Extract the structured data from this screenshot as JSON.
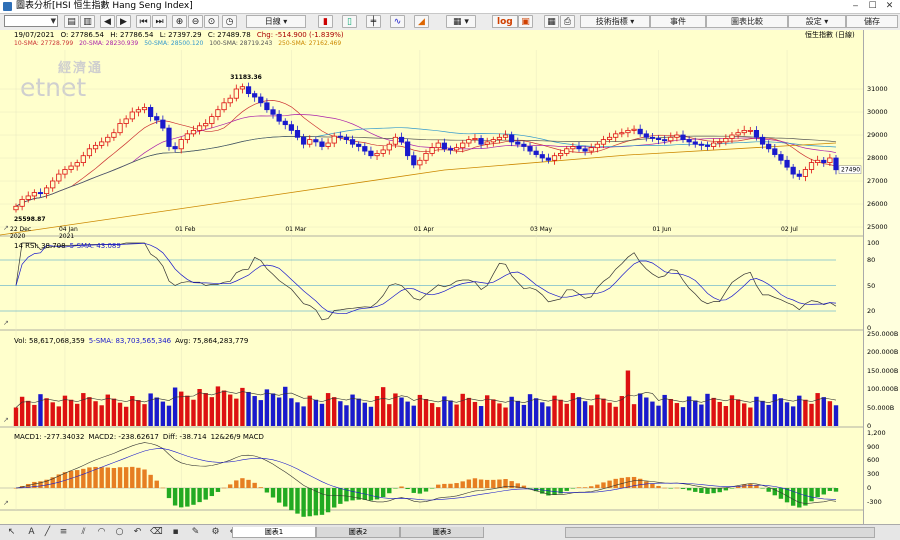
{
  "window": {
    "title": "圖表分析[HSI 恒生指數 Hang Seng Index]",
    "minimize": "‒",
    "maximize": "☐",
    "close": "✕"
  },
  "toolbar": {
    "combo_value": "",
    "menu_period": "日線",
    "menu_log": "log",
    "menu_tech": "技術指標 ▾",
    "menu_events": "事件",
    "menu_compare": "圖表比較",
    "menu_settings": "設定 ▾",
    "menu_save": "儲存"
  },
  "header": {
    "date": "19/07/2021",
    "open": "O: 27786.54",
    "high": "H: 27786.54",
    "low": "L: 27397.29",
    "close": "C: 27489.78",
    "change": "Chg: -514.900 (-1.839%)",
    "symbol": "恒生指數 (日線)",
    "sma_line": [
      "10-SMA: 27728.799",
      "20-SMA: 28230.939",
      "50-SMA: 28500.120",
      "100-SMA: 28719.243",
      "250-SMA: 27162.469"
    ]
  },
  "watermark": {
    "chinese": "經濟通",
    "latin": "etnet"
  },
  "price_annotations": {
    "high": "31183.36",
    "low": "25598.87",
    "last": "27490"
  },
  "x_axis": [
    {
      "label": "22 Dec",
      "sub": "2020",
      "i": 0
    },
    {
      "label": "04 Jan",
      "sub": "2021",
      "i": 8
    },
    {
      "label": "01 Feb",
      "sub": "",
      "i": 27
    },
    {
      "label": "01 Mar",
      "sub": "",
      "i": 45
    },
    {
      "label": "01 Apr",
      "sub": "",
      "i": 66
    },
    {
      "label": "03 May",
      "sub": "",
      "i": 85
    },
    {
      "label": "01 Jun",
      "sub": "",
      "i": 105
    },
    {
      "label": "02 Jul",
      "sub": "",
      "i": 126
    }
  ],
  "panels": {
    "price": {
      "ticks": [
        "31000",
        "30000",
        "29000",
        "28000",
        "27000",
        "26000",
        "25000"
      ]
    },
    "rsi": {
      "label": "14 RSI: 38.708",
      "sma": "5-SMA: 43.089",
      "ticks": [
        "100",
        "80",
        "50",
        "20",
        "0"
      ]
    },
    "volume": {
      "label": "Vol: 58,617,068,359",
      "sma": "5-SMA: 83,703,565,346",
      "avg": "Avg: 75,864,283,779",
      "ticks": [
        "250.000B",
        "200.000B",
        "150.000B",
        "100.000B",
        "50.000B",
        "0"
      ]
    },
    "macd": {
      "label": "MACD1: -277.34032",
      "macd2": "MACD2: -238.62617",
      "diff": "Diff: -38.714",
      "params": "12&26/9 MACD",
      "ticks": [
        "1,200",
        "900",
        "600",
        "300",
        "0",
        "-300"
      ]
    }
  },
  "tabs": [
    "圖表1",
    "圖表2",
    "圖表3"
  ],
  "colors": {
    "bg": "#ffffcc",
    "up": "#dd1111",
    "down": "#1a1acc",
    "macd_pos": "#e67e22",
    "macd_neg": "#22aa22"
  },
  "chart_data": {
    "type": "candlestick",
    "x": [
      "2020-12-22",
      "2021-07-19"
    ],
    "ohlc_last": {
      "open": 27786.54,
      "high": 27786.54,
      "low": 27397.29,
      "close": 27489.78
    },
    "series_close": [
      25900,
      26200,
      26350,
      26500,
      26450,
      26700,
      27000,
      27300,
      27500,
      27650,
      27800,
      28100,
      28400,
      28550,
      28700,
      28900,
      29100,
      29500,
      29700,
      30000,
      30100,
      30200,
      29800,
      29650,
      29300,
      28500,
      28400,
      28800,
      29050,
      29200,
      29400,
      29500,
      29800,
      30100,
      30400,
      30600,
      31000,
      31100,
      30800,
      30650,
      30400,
      30100,
      29900,
      29600,
      29450,
      29200,
      28900,
      28600,
      28800,
      28700,
      28500,
      28650,
      28950,
      28900,
      28800,
      28600,
      28500,
      28300,
      28100,
      28200,
      28350,
      28600,
      28900,
      28700,
      28100,
      27700,
      27900,
      28200,
      28450,
      28650,
      28400,
      28350,
      28450,
      28650,
      28800,
      28850,
      28600,
      28700,
      28800,
      28900,
      29000,
      28700,
      28600,
      28500,
      28300,
      28150,
      28000,
      27900,
      28100,
      28200,
      28400,
      28500,
      28400,
      28300,
      28450,
      28600,
      28800,
      28900,
      29050,
      29100,
      29200,
      29250,
      29050,
      28900,
      28850,
      28800,
      28750,
      28900,
      29000,
      28800,
      28700,
      28600,
      28550,
      28500,
      28650,
      28700,
      28850,
      29000,
      29100,
      29200,
      29200,
      28900,
      28600,
      28400,
      28150,
      27900,
      27600,
      27300,
      27200,
      27500,
      27800,
      27900,
      27800,
      28000,
      27490
    ]
  }
}
